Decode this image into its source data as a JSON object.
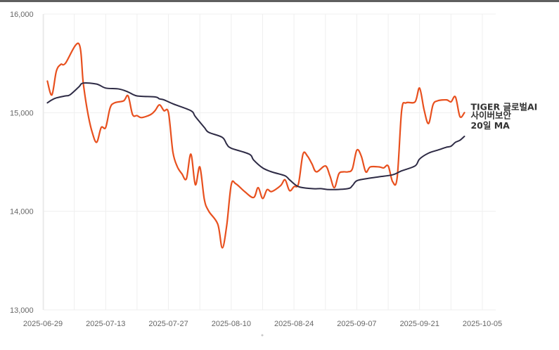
{
  "chart_data": {
    "type": "line",
    "title": "",
    "xlabel": "",
    "ylabel": "",
    "ylim": [
      13000,
      16000
    ],
    "y_ticks": [
      "13,000",
      "14,000",
      "15,000",
      "16,000"
    ],
    "x_ticks": [
      "2025-06-29",
      "2025-07-13",
      "2025-07-27",
      "2025-08-10",
      "2025-08-24",
      "2025-09-07",
      "2025-09-21",
      "2025-10-05"
    ],
    "grid": true,
    "legend": "end-of-line labels",
    "series": [
      {
        "name_lines": [
          "TIGER 글로벌AI",
          "사이버보안"
        ],
        "color": "#e8501e",
        "points": [
          [
            "2025-06-30",
            15320
          ],
          [
            "2025-07-01",
            15180
          ],
          [
            "2025-07-02",
            15420
          ],
          [
            "2025-07-03",
            15490
          ],
          [
            "2025-07-04",
            15500
          ],
          [
            "2025-07-07",
            15700
          ],
          [
            "2025-07-08",
            15300
          ],
          [
            "2025-07-09",
            15000
          ],
          [
            "2025-07-10",
            14800
          ],
          [
            "2025-07-11",
            14700
          ],
          [
            "2025-07-12",
            14850
          ],
          [
            "2025-07-13",
            14850
          ],
          [
            "2025-07-14",
            15050
          ],
          [
            "2025-07-15",
            15100
          ],
          [
            "2025-07-17",
            15120
          ],
          [
            "2025-07-18",
            15170
          ],
          [
            "2025-07-19",
            14980
          ],
          [
            "2025-07-20",
            14970
          ],
          [
            "2025-07-21",
            14950
          ],
          [
            "2025-07-23",
            14980
          ],
          [
            "2025-07-24",
            15020
          ],
          [
            "2025-07-25",
            15080
          ],
          [
            "2025-07-26",
            15020
          ],
          [
            "2025-07-27",
            15000
          ],
          [
            "2025-07-28",
            14600
          ],
          [
            "2025-07-29",
            14450
          ],
          [
            "2025-07-30",
            14380
          ],
          [
            "2025-07-31",
            14330
          ],
          [
            "2025-08-01",
            14580
          ],
          [
            "2025-08-02",
            14270
          ],
          [
            "2025-08-03",
            14450
          ],
          [
            "2025-08-04",
            14120
          ],
          [
            "2025-08-05",
            14000
          ],
          [
            "2025-08-07",
            13870
          ],
          [
            "2025-08-08",
            13630
          ],
          [
            "2025-08-09",
            13860
          ],
          [
            "2025-08-10",
            14270
          ],
          [
            "2025-08-11",
            14280
          ],
          [
            "2025-08-13",
            14200
          ],
          [
            "2025-08-15",
            14140
          ],
          [
            "2025-08-16",
            14240
          ],
          [
            "2025-08-17",
            14130
          ],
          [
            "2025-08-18",
            14220
          ],
          [
            "2025-08-19",
            14200
          ],
          [
            "2025-08-21",
            14260
          ],
          [
            "2025-08-22",
            14320
          ],
          [
            "2025-08-23",
            14210
          ],
          [
            "2025-08-24",
            14250
          ],
          [
            "2025-08-25",
            14280
          ],
          [
            "2025-08-26",
            14580
          ],
          [
            "2025-08-27",
            14560
          ],
          [
            "2025-08-28",
            14480
          ],
          [
            "2025-08-29",
            14400
          ],
          [
            "2025-08-31",
            14460
          ],
          [
            "2025-09-01",
            14360
          ],
          [
            "2025-09-02",
            14240
          ],
          [
            "2025-09-03",
            14380
          ],
          [
            "2025-09-04",
            14400
          ],
          [
            "2025-09-05",
            14400
          ],
          [
            "2025-09-06",
            14430
          ],
          [
            "2025-09-07",
            14620
          ],
          [
            "2025-09-08",
            14560
          ],
          [
            "2025-09-09",
            14400
          ],
          [
            "2025-09-10",
            14450
          ],
          [
            "2025-09-12",
            14450
          ],
          [
            "2025-09-13",
            14440
          ],
          [
            "2025-09-14",
            14460
          ],
          [
            "2025-09-15",
            14300
          ],
          [
            "2025-09-16",
            14340
          ],
          [
            "2025-09-17",
            15020
          ],
          [
            "2025-09-18",
            15100
          ],
          [
            "2025-09-20",
            15110
          ],
          [
            "2025-09-21",
            15250
          ],
          [
            "2025-09-22",
            15030
          ],
          [
            "2025-09-23",
            14890
          ],
          [
            "2025-09-24",
            15080
          ],
          [
            "2025-09-25",
            15120
          ],
          [
            "2025-09-27",
            15130
          ],
          [
            "2025-09-28",
            15110
          ],
          [
            "2025-09-29",
            15160
          ],
          [
            "2025-09-30",
            14960
          ],
          [
            "2025-10-01",
            15000
          ]
        ]
      },
      {
        "name_lines": [
          "20일 MA"
        ],
        "color": "#2e2b45",
        "points": [
          [
            "2025-06-30",
            15100
          ],
          [
            "2025-07-01",
            15130
          ],
          [
            "2025-07-02",
            15150
          ],
          [
            "2025-07-04",
            15170
          ],
          [
            "2025-07-05",
            15180
          ],
          [
            "2025-07-07",
            15260
          ],
          [
            "2025-07-08",
            15300
          ],
          [
            "2025-07-11",
            15290
          ],
          [
            "2025-07-13",
            15250
          ],
          [
            "2025-07-16",
            15240
          ],
          [
            "2025-07-18",
            15210
          ],
          [
            "2025-07-20",
            15170
          ],
          [
            "2025-07-24",
            15160
          ],
          [
            "2025-07-25",
            15140
          ],
          [
            "2025-07-26",
            15130
          ],
          [
            "2025-07-28",
            15090
          ],
          [
            "2025-08-01",
            15020
          ],
          [
            "2025-08-02",
            14960
          ],
          [
            "2025-08-04",
            14850
          ],
          [
            "2025-08-05",
            14800
          ],
          [
            "2025-08-08",
            14750
          ],
          [
            "2025-08-09",
            14680
          ],
          [
            "2025-08-10",
            14640
          ],
          [
            "2025-08-14",
            14580
          ],
          [
            "2025-08-15",
            14520
          ],
          [
            "2025-08-17",
            14440
          ],
          [
            "2025-08-19",
            14400
          ],
          [
            "2025-08-22",
            14360
          ],
          [
            "2025-08-23",
            14320
          ],
          [
            "2025-08-25",
            14250
          ],
          [
            "2025-08-28",
            14230
          ],
          [
            "2025-08-30",
            14230
          ],
          [
            "2025-09-01",
            14220
          ],
          [
            "2025-09-05",
            14230
          ],
          [
            "2025-09-06",
            14260
          ],
          [
            "2025-09-07",
            14310
          ],
          [
            "2025-09-09",
            14330
          ],
          [
            "2025-09-12",
            14350
          ],
          [
            "2025-09-15",
            14370
          ],
          [
            "2025-09-17",
            14410
          ],
          [
            "2025-09-20",
            14460
          ],
          [
            "2025-09-21",
            14530
          ],
          [
            "2025-09-23",
            14590
          ],
          [
            "2025-09-25",
            14620
          ],
          [
            "2025-09-27",
            14650
          ],
          [
            "2025-09-28",
            14660
          ],
          [
            "2025-09-29",
            14700
          ],
          [
            "2025-09-30",
            14720
          ],
          [
            "2025-10-01",
            14760
          ]
        ]
      }
    ]
  }
}
